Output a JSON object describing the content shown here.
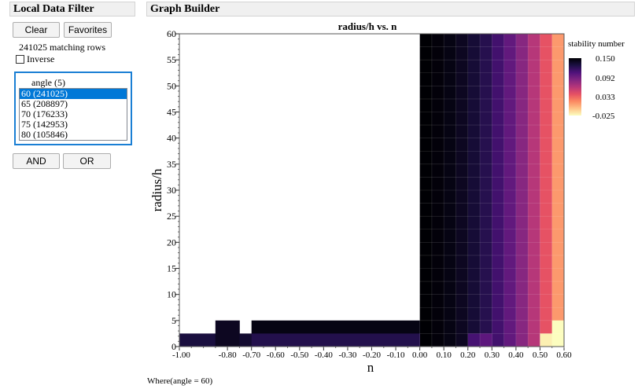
{
  "filter_panel": {
    "title": "Local Data Filter",
    "clear_label": "Clear",
    "favorites_label": "Favorites",
    "matching_rows": "241025 matching rows",
    "inverse_label": "Inverse",
    "inverse_checked": false,
    "column_title": "angle (5)",
    "items": [
      {
        "label": "60 (241025)",
        "selected": true
      },
      {
        "label": "65 (208897)",
        "selected": false
      },
      {
        "label": "70 (176233)",
        "selected": false
      },
      {
        "label": "75 (142953)",
        "selected": false
      },
      {
        "label": "80 (105846)",
        "selected": false
      }
    ],
    "and_label": "AND",
    "or_label": "OR"
  },
  "graph_panel": {
    "title": "Graph Builder",
    "where_text": "Where(angle = 60)"
  },
  "chart_data": {
    "type": "heatmap",
    "title": "radius/h vs. n",
    "xlabel": "n",
    "ylabel": "radius/h",
    "xlim": [
      -1.0,
      0.6
    ],
    "ylim": [
      0,
      60
    ],
    "x_ticks": [
      "-1.00",
      "-0.80",
      "-0.70",
      "-0.60",
      "-0.50",
      "-0.40",
      "-0.30",
      "-0.20",
      "-0.10",
      "0.00",
      "0.10",
      "0.20",
      "0.30",
      "0.40",
      "0.50",
      "0.60"
    ],
    "y_ticks": [
      "0",
      "5",
      "10",
      "15",
      "20",
      "25",
      "30",
      "35",
      "40",
      "45",
      "50",
      "55",
      "60"
    ],
    "legend": {
      "title": "stability number",
      "position": "right",
      "labels": [
        "0.150",
        "0.092",
        "0.033",
        "-0.025"
      ],
      "range": [
        -0.025,
        0.15
      ],
      "stops": [
        "#000004",
        "#1c1044",
        "#4f127b",
        "#812581",
        "#b5367a",
        "#e55064",
        "#fb8761",
        "#fec287",
        "#fcfdbf"
      ]
    },
    "columns": [
      {
        "x0": 0.0,
        "x1": 0.05,
        "y_top": 60,
        "value": 0.15
      },
      {
        "x0": 0.05,
        "x1": 0.1,
        "y_top": 60,
        "value": 0.148
      },
      {
        "x0": 0.1,
        "x1": 0.15,
        "y_top": 60,
        "value": 0.145
      },
      {
        "x0": 0.15,
        "x1": 0.2,
        "y_top": 60,
        "value": 0.14
      },
      {
        "x0": 0.2,
        "x1": 0.25,
        "y_top": 60,
        "value": 0.133
      },
      {
        "x0": 0.25,
        "x1": 0.3,
        "y_top": 60,
        "value": 0.124
      },
      {
        "x0": 0.3,
        "x1": 0.35,
        "y_top": 60,
        "value": 0.112
      },
      {
        "x0": 0.35,
        "x1": 0.4,
        "y_top": 60,
        "value": 0.098
      },
      {
        "x0": 0.4,
        "x1": 0.45,
        "y_top": 60,
        "value": 0.082
      },
      {
        "x0": 0.45,
        "x1": 0.5,
        "y_top": 60,
        "value": 0.062
      },
      {
        "x0": 0.5,
        "x1": 0.55,
        "y_top": 60,
        "value": 0.04
      },
      {
        "x0": 0.55,
        "x1": 0.6,
        "y_top": 60,
        "value": 0.012
      }
    ],
    "bottom_cells": [
      {
        "x0": -1.0,
        "x1": -0.85,
        "y0": 0,
        "y1": 2.5,
        "value": 0.13
      },
      {
        "x0": -0.85,
        "x1": -0.75,
        "y0": 0,
        "y1": 5,
        "value": 0.14
      },
      {
        "x0": -0.75,
        "x1": -0.7,
        "y0": 0,
        "y1": 2.5,
        "value": 0.135
      },
      {
        "x0": -0.7,
        "x1": 0.0,
        "y0": 2.5,
        "y1": 5,
        "value": 0.145
      },
      {
        "x0": -0.7,
        "x1": 0.0,
        "y0": 0,
        "y1": 2.5,
        "value": 0.125
      },
      {
        "x0": 0.2,
        "x1": 0.25,
        "y0": 0,
        "y1": 2.5,
        "value": 0.11
      },
      {
        "x0": 0.25,
        "x1": 0.3,
        "y0": 0,
        "y1": 2.5,
        "value": 0.1
      },
      {
        "x0": 0.5,
        "x1": 0.55,
        "y0": 0,
        "y1": 2.5,
        "value": -0.02
      },
      {
        "x0": 0.55,
        "x1": 0.6,
        "y0": 0,
        "y1": 5,
        "value": -0.025
      }
    ]
  }
}
